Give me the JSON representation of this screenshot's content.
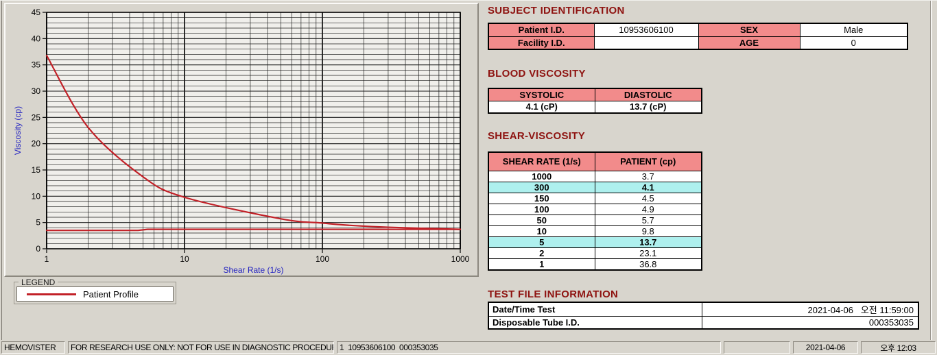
{
  "colors": {
    "heading_maroon": "#8e1310",
    "table_header_pink": "#f28b8b",
    "highlight_cyan": "#aef0ee",
    "series_red": "#c22128",
    "axis_label_blue": "#2020c0",
    "window_gray": "#d8d5cd"
  },
  "chart_data": {
    "type": "line",
    "title": "",
    "xlabel": "Shear Rate (1/s)",
    "ylabel": "Viscosity (cp)",
    "x_scale": "log",
    "xlim": [
      1,
      1000
    ],
    "ylim": [
      0,
      45
    ],
    "x_ticks": [
      1,
      10,
      100,
      1000
    ],
    "y_tick_major": 5,
    "y_tick_minor": 1,
    "grid": true,
    "legend_position": "below-left",
    "series": [
      {
        "name": "Patient Profile",
        "color": "#c22128",
        "smooth": true,
        "x": [
          1,
          2,
          5,
          10,
          50,
          100,
          150,
          300,
          1000
        ],
        "y": [
          36.8,
          23.1,
          13.7,
          9.8,
          5.7,
          4.9,
          4.5,
          4.1,
          3.7
        ]
      },
      {
        "name": "flat-trace",
        "color": "#c22128",
        "smooth": false,
        "x": [
          1,
          4.6,
          5.4,
          1000
        ],
        "y": [
          3.5,
          3.5,
          3.7,
          3.7
        ]
      }
    ]
  },
  "legend": {
    "group_label": "LEGEND",
    "entries": [
      {
        "label": "Patient Profile",
        "color": "#c22128"
      }
    ]
  },
  "subject": {
    "title": "SUBJECT IDENTIFICATION",
    "rows": [
      [
        "Patient I.D.",
        "10953606100",
        "SEX",
        "Male"
      ],
      [
        "Facility I.D.",
        "",
        "AGE",
        "0"
      ]
    ]
  },
  "blood": {
    "title": "BLOOD VISCOSITY",
    "headers": [
      "SYSTOLIC",
      "DIASTOLIC"
    ],
    "values": [
      "4.1 (cP)",
      "13.7 (cP)"
    ]
  },
  "shear": {
    "title": "SHEAR-VISCOSITY",
    "headers": [
      "SHEAR RATE (1/s)",
      "PATIENT (cp)"
    ],
    "rows": [
      {
        "rate": "1000",
        "value": "3.7",
        "highlight": false
      },
      {
        "rate": "300",
        "value": "4.1",
        "highlight": true
      },
      {
        "rate": "150",
        "value": "4.5",
        "highlight": false
      },
      {
        "rate": "100",
        "value": "4.9",
        "highlight": false
      },
      {
        "rate": "50",
        "value": "5.7",
        "highlight": false
      },
      {
        "rate": "10",
        "value": "9.8",
        "highlight": false
      },
      {
        "rate": "5",
        "value": "13.7",
        "highlight": true
      },
      {
        "rate": "2",
        "value": "23.1",
        "highlight": false
      },
      {
        "rate": "1",
        "value": "36.8",
        "highlight": false
      }
    ]
  },
  "testfile": {
    "title": "TEST FILE INFORMATION",
    "rows": [
      {
        "label": "Date/Time Test",
        "value": "2021-04-06   오전 11:59:00"
      },
      {
        "label": "Disposable Tube I.D.",
        "value": "000353035"
      }
    ]
  },
  "status_bar": {
    "items": [
      "HEMOVISTER",
      "FOR RESEARCH USE ONLY: NOT FOR USE IN DIAGNOSTIC PROCEDURES",
      "1  10953606100  000353035",
      "",
      "2021-04-06",
      "오후 12:03"
    ]
  }
}
